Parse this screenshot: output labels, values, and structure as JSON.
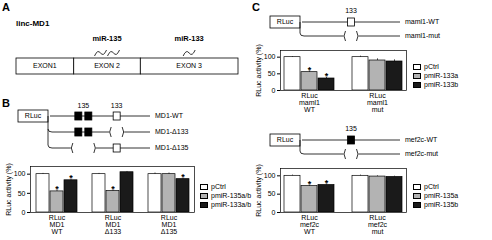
{
  "panels": {
    "A": {
      "label": "A",
      "gene": "linc-MD1",
      "exons": [
        "EXON1",
        "EXON 2",
        "EXON 3"
      ],
      "mirnas": [
        {
          "name": "miR-135",
          "exon": 2,
          "sites": 2
        },
        {
          "name": "miR-133",
          "exon": 3,
          "sites": 1
        }
      ]
    },
    "B": {
      "label": "B",
      "reporter": "RLuc",
      "sites": [
        {
          "label": "135",
          "count": 2,
          "fill": "#000000"
        },
        {
          "label": "133",
          "count": 1,
          "fill": "#ffffff"
        }
      ],
      "constructs": [
        {
          "name": "MD1-WT",
          "absent": []
        },
        {
          "name": "MD1-Δ133",
          "absent": [
            "133"
          ]
        },
        {
          "name": "MD1-Δ135",
          "absent": [
            "135"
          ]
        }
      ]
    },
    "C": {
      "label": "C",
      "reporter": "RLuc",
      "schemes": [
        {
          "sites": [
            {
              "label": "133",
              "count": 1,
              "fill": "#ffffff"
            }
          ],
          "constructs": [
            {
              "name": "maml1-WT",
              "absent": []
            },
            {
              "name": "maml1-mut",
              "absent": [
                "133"
              ]
            }
          ]
        },
        {
          "sites": [
            {
              "label": "135",
              "count": 1,
              "fill": "#000000"
            }
          ],
          "constructs": [
            {
              "name": "mef2c-WT",
              "absent": []
            },
            {
              "name": "mef2c-mut",
              "absent": [
                "135"
              ]
            }
          ]
        }
      ]
    }
  },
  "chart_data": [
    {
      "type": "bar",
      "y_label": "RLuc activity (%)",
      "categories": [
        "RLuc\nMD1\nWT",
        "RLuc\nMD1\nΔ133",
        "RLuc\nMD1\nΔ135"
      ],
      "series": [
        {
          "name": "pCtrl",
          "color": "#ffffff",
          "values": [
            100,
            100,
            100
          ],
          "errors": [
            2,
            2,
            3
          ]
        },
        {
          "name": "pmiR-135a/b",
          "color": "#b3b3b3",
          "values": [
            55,
            56,
            100
          ],
          "errors": [
            4,
            3,
            3
          ]
        },
        {
          "name": "pmiR-133a/b",
          "color": "#1a1a1a",
          "values": [
            84,
            105,
            87
          ],
          "errors": [
            3,
            2,
            3
          ]
        }
      ],
      "annotations": [
        {
          "text": "*",
          "category": 0,
          "series": 1
        },
        {
          "text": "*",
          "category": 0,
          "series": 2
        },
        {
          "text": "*",
          "category": 1,
          "series": 1
        },
        {
          "text": "*",
          "category": 2,
          "series": 2
        }
      ],
      "ylim": [
        0,
        120
      ],
      "yticks": [
        0,
        50,
        100
      ],
      "legend": "right"
    },
    {
      "type": "bar",
      "y_label": "RLuc activity (%)",
      "categories": [
        "RLuc\nmaml1\nWT",
        "RLuc\nmaml1\nmut"
      ],
      "series": [
        {
          "name": "pCtrl",
          "color": "#ffffff",
          "values": [
            100,
            100
          ],
          "errors": [
            2,
            3
          ]
        },
        {
          "name": "pmiR-133a",
          "color": "#b3b3b3",
          "values": [
            55,
            90
          ],
          "errors": [
            4,
            5
          ]
        },
        {
          "name": "pmiR-133b",
          "color": "#1a1a1a",
          "values": [
            36,
            87
          ],
          "errors": [
            4,
            5
          ]
        }
      ],
      "annotations": [
        {
          "text": "*",
          "category": 0,
          "series": 1
        },
        {
          "text": "*",
          "category": 0,
          "series": 2
        }
      ],
      "ylim": [
        0,
        120
      ],
      "yticks": [
        0,
        50,
        100
      ],
      "legend": "right"
    },
    {
      "type": "bar",
      "y_label": "RLuc activity (%)",
      "categories": [
        "RLuc\nmef2c\nWT",
        "RLuc\nmef2c\nmut"
      ],
      "series": [
        {
          "name": "pCtrl",
          "color": "#ffffff",
          "values": [
            100,
            100
          ],
          "errors": [
            2,
            2
          ]
        },
        {
          "name": "pmiR-135a",
          "color": "#b3b3b3",
          "values": [
            72,
            98
          ],
          "errors": [
            3,
            2
          ]
        },
        {
          "name": "pmiR-135b",
          "color": "#1a1a1a",
          "values": [
            75,
            97
          ],
          "errors": [
            3,
            2
          ]
        }
      ],
      "annotations": [
        {
          "text": "*",
          "category": 0,
          "series": 1
        },
        {
          "text": "*",
          "category": 0,
          "series": 2
        }
      ],
      "ylim": [
        0,
        120
      ],
      "yticks": [
        0,
        50,
        100
      ],
      "legend": "right"
    }
  ]
}
